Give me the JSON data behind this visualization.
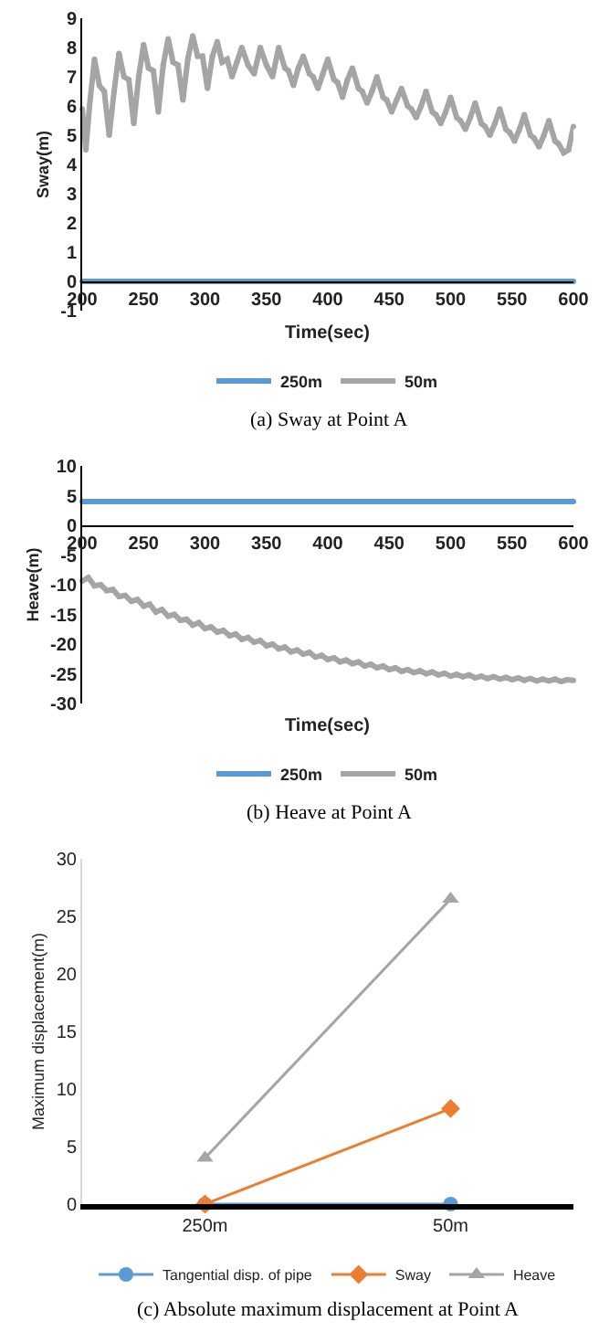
{
  "chart_data": [
    {
      "type": "line",
      "xlabel": "Time(sec)",
      "ylabel": "Sway(m)",
      "xlim": [
        200,
        600
      ],
      "xticks": [
        200,
        250,
        300,
        350,
        400,
        450,
        500,
        550,
        600
      ],
      "ylim": [
        -1,
        9
      ],
      "yticks": [
        -1,
        0,
        1,
        2,
        3,
        4,
        5,
        6,
        7,
        8,
        9
      ],
      "grid": false,
      "legend": "bottom",
      "marker": "circle",
      "annotations": [
        "(a) Sway at Point A"
      ],
      "series": [
        {
          "name": "250m",
          "color": "#5b9bd5",
          "x": [
            200,
            600
          ],
          "values": [
            0,
            0
          ]
        },
        {
          "name": "50m",
          "color": "#a5a5a5",
          "x": [
            200,
            203,
            206,
            210,
            214,
            218,
            222,
            226,
            230,
            234,
            238,
            242,
            246,
            250,
            254,
            258,
            262,
            266,
            270,
            274,
            278,
            282,
            286,
            290,
            294,
            298,
            302,
            306,
            310,
            314,
            318,
            322,
            326,
            330,
            335,
            340,
            345,
            350,
            355,
            360,
            365,
            368,
            372,
            376,
            380,
            385,
            388,
            392,
            396,
            400,
            405,
            408,
            412,
            416,
            420,
            425,
            428,
            432,
            436,
            440,
            445,
            448,
            452,
            456,
            460,
            465,
            468,
            472,
            476,
            480,
            485,
            488,
            492,
            496,
            500,
            505,
            508,
            512,
            516,
            520,
            525,
            528,
            532,
            536,
            540,
            545,
            548,
            552,
            556,
            560,
            565,
            568,
            572,
            576,
            580,
            585,
            588,
            592,
            596,
            600
          ],
          "values": [
            5.9,
            4.5,
            6.0,
            7.6,
            6.7,
            6.5,
            5.0,
            6.5,
            7.8,
            7.0,
            6.9,
            5.4,
            7.0,
            8.1,
            7.3,
            7.2,
            5.8,
            7.4,
            8.3,
            7.5,
            7.4,
            6.2,
            7.6,
            8.4,
            7.7,
            7.7,
            6.6,
            7.7,
            8.2,
            7.5,
            7.6,
            7.0,
            7.5,
            8.0,
            7.4,
            7.1,
            8.0,
            7.4,
            7.0,
            8.0,
            7.3,
            7.2,
            6.7,
            7.3,
            7.7,
            7.1,
            7.0,
            6.6,
            7.1,
            7.6,
            6.9,
            6.8,
            6.3,
            6.9,
            7.3,
            6.6,
            6.5,
            6.1,
            6.5,
            7.0,
            6.3,
            6.2,
            5.8,
            6.2,
            6.6,
            6.0,
            5.9,
            5.6,
            6.0,
            6.5,
            5.8,
            5.7,
            5.4,
            5.8,
            6.3,
            5.6,
            5.5,
            5.2,
            5.6,
            6.1,
            5.4,
            5.3,
            5.0,
            5.4,
            5.9,
            5.2,
            5.1,
            4.8,
            5.2,
            5.7,
            5.0,
            4.9,
            4.6,
            5.0,
            5.5,
            4.8,
            4.7,
            4.4,
            4.5,
            5.3
          ]
        }
      ]
    },
    {
      "type": "line",
      "xlabel": "Time(sec)",
      "ylabel": "Heave(m)",
      "xlim": [
        200,
        600
      ],
      "xticks": [
        200,
        250,
        300,
        350,
        400,
        450,
        500,
        550,
        600
      ],
      "ylim": [
        -30,
        10
      ],
      "yticks": [
        -30,
        -25,
        -20,
        -15,
        -10,
        -5,
        0,
        5,
        10
      ],
      "grid": false,
      "legend": "bottom",
      "marker": "circle",
      "annotations": [
        "(b) Heave at Point A"
      ],
      "series": [
        {
          "name": "250m",
          "color": "#5b9bd5",
          "x": [
            200,
            600
          ],
          "values": [
            4,
            4
          ]
        },
        {
          "name": "50m",
          "color": "#a5a5a5",
          "x": [
            200,
            205,
            210,
            215,
            220,
            225,
            230,
            235,
            240,
            245,
            250,
            255,
            260,
            265,
            270,
            275,
            280,
            285,
            290,
            295,
            300,
            305,
            310,
            315,
            320,
            325,
            330,
            335,
            340,
            345,
            350,
            355,
            360,
            365,
            370,
            375,
            380,
            385,
            390,
            395,
            400,
            405,
            410,
            415,
            420,
            425,
            430,
            435,
            440,
            445,
            450,
            455,
            460,
            465,
            470,
            475,
            480,
            485,
            490,
            495,
            500,
            505,
            510,
            515,
            520,
            525,
            530,
            535,
            540,
            545,
            550,
            555,
            560,
            565,
            570,
            575,
            580,
            585,
            590,
            595,
            600
          ],
          "values": [
            -9.4,
            -8.8,
            -10.2,
            -10.0,
            -11.0,
            -10.8,
            -12.0,
            -11.8,
            -12.8,
            -12.5,
            -13.6,
            -13.3,
            -14.6,
            -14.2,
            -15.3,
            -15.0,
            -16.0,
            -15.8,
            -16.8,
            -16.4,
            -17.4,
            -17.1,
            -18.0,
            -17.7,
            -18.6,
            -18.3,
            -19.2,
            -18.9,
            -19.7,
            -19.4,
            -20.3,
            -20.0,
            -20.8,
            -20.5,
            -21.3,
            -21.0,
            -21.7,
            -21.4,
            -22.2,
            -21.9,
            -22.6,
            -22.3,
            -23.0,
            -22.7,
            -23.3,
            -23.0,
            -23.7,
            -23.4,
            -24.0,
            -23.7,
            -24.3,
            -24.0,
            -24.6,
            -24.3,
            -24.8,
            -24.5,
            -25.0,
            -24.7,
            -25.2,
            -24.9,
            -25.4,
            -25.1,
            -25.5,
            -25.2,
            -25.7,
            -25.4,
            -25.8,
            -25.5,
            -25.9,
            -25.6,
            -26.0,
            -25.7,
            -26.1,
            -25.8,
            -26.2,
            -25.9,
            -26.2,
            -25.9,
            -26.3,
            -26.0,
            -26.1
          ]
        }
      ]
    },
    {
      "type": "line",
      "ylabel": "Maximum displacement(m)",
      "categories": [
        "250m",
        "50m"
      ],
      "ylim": [
        0,
        30
      ],
      "yticks": [
        0,
        5,
        10,
        15,
        20,
        25,
        30
      ],
      "grid": false,
      "legend": "bottom",
      "annotations": [
        "(c) Absolute maximum displacement at Point A"
      ],
      "series": [
        {
          "name": "Tangential disp. of pipe",
          "color": "#5b9bd5",
          "marker": "circle",
          "values": [
            0,
            0
          ]
        },
        {
          "name": "Sway",
          "color": "#ed7d31",
          "marker": "diamond",
          "values": [
            0,
            8.3
          ]
        },
        {
          "name": "Heave",
          "color": "#a5a5a5",
          "marker": "triangle",
          "values": [
            4,
            26.5
          ]
        }
      ]
    }
  ]
}
